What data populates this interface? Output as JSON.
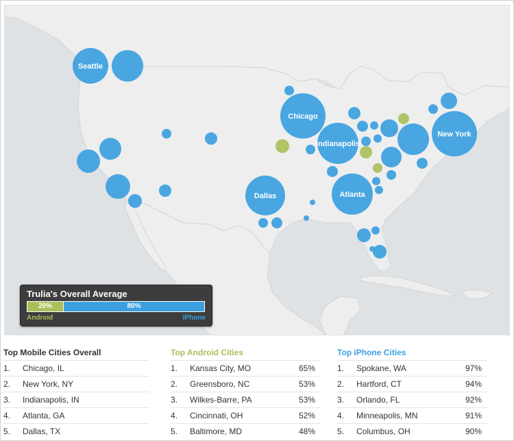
{
  "colors": {
    "iphone": "#3b9fe0",
    "android": "#a9c05a",
    "map_bg": "#dfe2e4",
    "land": "#eeeeee"
  },
  "legend": {
    "title": "Trulia's Overall Average",
    "android_pct_label": "20%",
    "iphone_pct_label": "80%",
    "android_share": 0.2,
    "iphone_share": 0.8,
    "android_label": "Android",
    "iphone_label": "iPhone"
  },
  "map_labels": {
    "seattle": "Seattle",
    "chicago": "Chicago",
    "indianapolis": "Indianapolis",
    "dallas": "Dallas",
    "atlanta": "Atlanta",
    "new_york": "New York"
  },
  "overall": {
    "title": "Top Mobile Cities Overall",
    "items": [
      {
        "rank": "1.",
        "city": "Chicago, IL"
      },
      {
        "rank": "2.",
        "city": "New York, NY"
      },
      {
        "rank": "3.",
        "city": "Indianapolis, IN"
      },
      {
        "rank": "4.",
        "city": "Atlanta, GA"
      },
      {
        "rank": "5.",
        "city": "Dallas, TX"
      }
    ]
  },
  "android": {
    "title": "Top Android Cities",
    "items": [
      {
        "rank": "1.",
        "city": "Kansas City, MO",
        "pct": "65%"
      },
      {
        "rank": "2.",
        "city": "Greensboro, NC",
        "pct": "53%"
      },
      {
        "rank": "3.",
        "city": "Wilkes-Barre, PA",
        "pct": "53%"
      },
      {
        "rank": "4.",
        "city": "Cincinnati, OH",
        "pct": "52%"
      },
      {
        "rank": "5.",
        "city": "Baltimore, MD",
        "pct": "48%"
      }
    ]
  },
  "iphone": {
    "title": "Top iPhone Cities",
    "items": [
      {
        "rank": "1.",
        "city": "Spokane, WA",
        "pct": "97%"
      },
      {
        "rank": "2.",
        "city": "Hartford, CT",
        "pct": "94%"
      },
      {
        "rank": "3.",
        "city": "Orlando, FL",
        "pct": "92%"
      },
      {
        "rank": "4.",
        "city": "Minneapolis, MN",
        "pct": "91%"
      },
      {
        "rank": "5.",
        "city": "Columbus, OH",
        "pct": "90%"
      }
    ]
  }
}
